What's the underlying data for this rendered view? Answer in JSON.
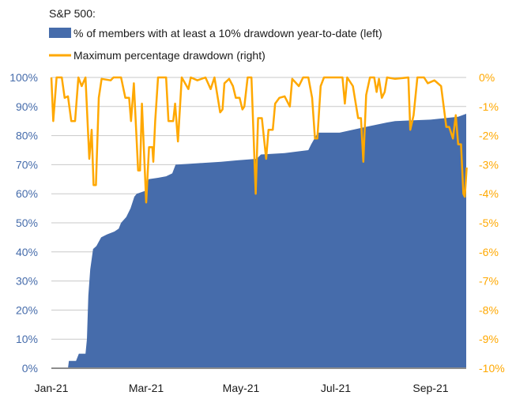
{
  "chart_data": {
    "type": "area+line",
    "title": "S&P 500:",
    "legend": {
      "placement": "top-left",
      "entries": [
        {
          "label": "% of members with at least a 10% drawdown year-to-date (left)",
          "color": "#466cab",
          "kind": "area"
        },
        {
          "label": "Maximum percentage drawdown (right)",
          "color": "#ffa800",
          "kind": "line"
        }
      ]
    },
    "x_unit": "months since Jan 1 2021",
    "x_range": [
      0,
      8.76
    ],
    "x_ticks": [
      {
        "value": 0,
        "label": "Jan-21"
      },
      {
        "value": 2,
        "label": "Mar-21"
      },
      {
        "value": 4,
        "label": "May-21"
      },
      {
        "value": 6,
        "label": "Jul-21"
      },
      {
        "value": 8,
        "label": "Sep-21"
      }
    ],
    "left_axis": {
      "range": [
        0,
        100
      ],
      "ticks": [
        "0%",
        "10%",
        "20%",
        "30%",
        "40%",
        "50%",
        "60%",
        "70%",
        "80%",
        "90%",
        "100%"
      ],
      "color": "#466cab"
    },
    "right_axis": {
      "range": [
        -10,
        0
      ],
      "ticks": [
        "-10%",
        "-9%",
        "-8%",
        "-7%",
        "-6%",
        "-5%",
        "-4%",
        "-3%",
        "-2%",
        "-1%",
        "0%"
      ],
      "color": "#ffa800"
    },
    "grid": true,
    "series": [
      {
        "name": "% of members with at least a 10% drawdown year-to-date (left)",
        "axis": "left",
        "points": [
          [
            0,
            0
          ],
          [
            0.35,
            0
          ],
          [
            0.37,
            2.5
          ],
          [
            0.52,
            2.5
          ],
          [
            0.58,
            5
          ],
          [
            0.72,
            5
          ],
          [
            0.75,
            10
          ],
          [
            0.78,
            25
          ],
          [
            0.82,
            34
          ],
          [
            0.88,
            41
          ],
          [
            0.95,
            42
          ],
          [
            1.05,
            45
          ],
          [
            1.17,
            46
          ],
          [
            1.33,
            47
          ],
          [
            1.42,
            48
          ],
          [
            1.47,
            50
          ],
          [
            1.58,
            52
          ],
          [
            1.67,
            55
          ],
          [
            1.75,
            59
          ],
          [
            1.8,
            60
          ],
          [
            1.98,
            61
          ],
          [
            2.05,
            65
          ],
          [
            2.25,
            65.5
          ],
          [
            2.42,
            66
          ],
          [
            2.55,
            67
          ],
          [
            2.62,
            70
          ],
          [
            3.08,
            70.5
          ],
          [
            3.58,
            71
          ],
          [
            3.92,
            71.5
          ],
          [
            4.33,
            72
          ],
          [
            4.42,
            73.5
          ],
          [
            4.92,
            74
          ],
          [
            5.42,
            75
          ],
          [
            5.48,
            77
          ],
          [
            5.55,
            79
          ],
          [
            5.62,
            81
          ],
          [
            6.08,
            81
          ],
          [
            6.63,
            83
          ],
          [
            7.08,
            84.5
          ],
          [
            7.25,
            85
          ],
          [
            8.0,
            85.5
          ],
          [
            8.58,
            86.5
          ],
          [
            8.75,
            87.5
          ]
        ]
      },
      {
        "name": "Maximum percentage drawdown (right)",
        "axis": "right",
        "points": [
          [
            0,
            0
          ],
          [
            0.04,
            -1.5
          ],
          [
            0.11,
            0
          ],
          [
            0.22,
            0
          ],
          [
            0.28,
            -0.7
          ],
          [
            0.35,
            -0.65
          ],
          [
            0.42,
            -1.5
          ],
          [
            0.5,
            -1.5
          ],
          [
            0.57,
            0
          ],
          [
            0.64,
            -0.3
          ],
          [
            0.72,
            0
          ],
          [
            0.8,
            -2.8
          ],
          [
            0.85,
            -1.8
          ],
          [
            0.89,
            -3.7
          ],
          [
            0.94,
            -3.7
          ],
          [
            1.0,
            -0.7
          ],
          [
            1.06,
            -0.05
          ],
          [
            1.25,
            -0.1
          ],
          [
            1.31,
            0
          ],
          [
            1.47,
            0
          ],
          [
            1.56,
            -0.7
          ],
          [
            1.64,
            -0.7
          ],
          [
            1.68,
            -1.5
          ],
          [
            1.74,
            -0.2
          ],
          [
            1.83,
            -3.2
          ],
          [
            1.87,
            -3.2
          ],
          [
            1.91,
            -0.9
          ],
          [
            2.0,
            -4.3
          ],
          [
            2.06,
            -2.4
          ],
          [
            2.13,
            -2.4
          ],
          [
            2.15,
            -2.9
          ],
          [
            2.19,
            -1.5
          ],
          [
            2.25,
            0
          ],
          [
            2.42,
            0
          ],
          [
            2.47,
            -1.5
          ],
          [
            2.57,
            -1.5
          ],
          [
            2.61,
            -0.9
          ],
          [
            2.67,
            -2.2
          ],
          [
            2.75,
            0
          ],
          [
            2.89,
            -0.4
          ],
          [
            2.94,
            0
          ],
          [
            3.08,
            -0.1
          ],
          [
            3.25,
            0
          ],
          [
            3.36,
            -0.4
          ],
          [
            3.44,
            0
          ],
          [
            3.56,
            -1.2
          ],
          [
            3.61,
            -1.1
          ],
          [
            3.65,
            -0.2
          ],
          [
            3.75,
            -0.05
          ],
          [
            3.83,
            -0.3
          ],
          [
            3.89,
            -0.7
          ],
          [
            3.97,
            -0.7
          ],
          [
            4.03,
            -1.1
          ],
          [
            4.07,
            -1.0
          ],
          [
            4.14,
            0
          ],
          [
            4.22,
            0
          ],
          [
            4.31,
            -4.0
          ],
          [
            4.36,
            -1.4
          ],
          [
            4.44,
            -1.4
          ],
          [
            4.53,
            -2.8
          ],
          [
            4.58,
            -1.8
          ],
          [
            4.67,
            -1.8
          ],
          [
            4.72,
            -0.9
          ],
          [
            4.81,
            -0.7
          ],
          [
            4.92,
            -0.65
          ],
          [
            5.03,
            -1.0
          ],
          [
            5.08,
            -0.05
          ],
          [
            5.22,
            -0.3
          ],
          [
            5.31,
            0
          ],
          [
            5.42,
            0
          ],
          [
            5.5,
            -0.7
          ],
          [
            5.56,
            -2.1
          ],
          [
            5.61,
            -2.1
          ],
          [
            5.68,
            -0.3
          ],
          [
            5.75,
            0
          ],
          [
            6.14,
            0
          ],
          [
            6.19,
            -0.9
          ],
          [
            6.24,
            0
          ],
          [
            6.36,
            -0.3
          ],
          [
            6.47,
            -1.4
          ],
          [
            6.53,
            -1.4
          ],
          [
            6.58,
            -2.9
          ],
          [
            6.64,
            -0.6
          ],
          [
            6.72,
            0
          ],
          [
            6.81,
            0
          ],
          [
            6.86,
            -0.5
          ],
          [
            6.91,
            -0.05
          ],
          [
            6.97,
            -0.7
          ],
          [
            7.03,
            -0.5
          ],
          [
            7.08,
            0
          ],
          [
            7.25,
            -0.05
          ],
          [
            7.53,
            0
          ],
          [
            7.57,
            -1.8
          ],
          [
            7.64,
            -1.3
          ],
          [
            7.72,
            0
          ],
          [
            7.86,
            0
          ],
          [
            7.94,
            -0.2
          ],
          [
            8.08,
            -0.1
          ],
          [
            8.22,
            -0.3
          ],
          [
            8.33,
            -1.7
          ],
          [
            8.39,
            -1.7
          ],
          [
            8.47,
            -2.1
          ],
          [
            8.53,
            -1.3
          ],
          [
            8.58,
            -2.3
          ],
          [
            8.64,
            -2.3
          ],
          [
            8.69,
            -4.0
          ],
          [
            8.72,
            -4.1
          ],
          [
            8.76,
            -3.1
          ]
        ]
      }
    ]
  }
}
